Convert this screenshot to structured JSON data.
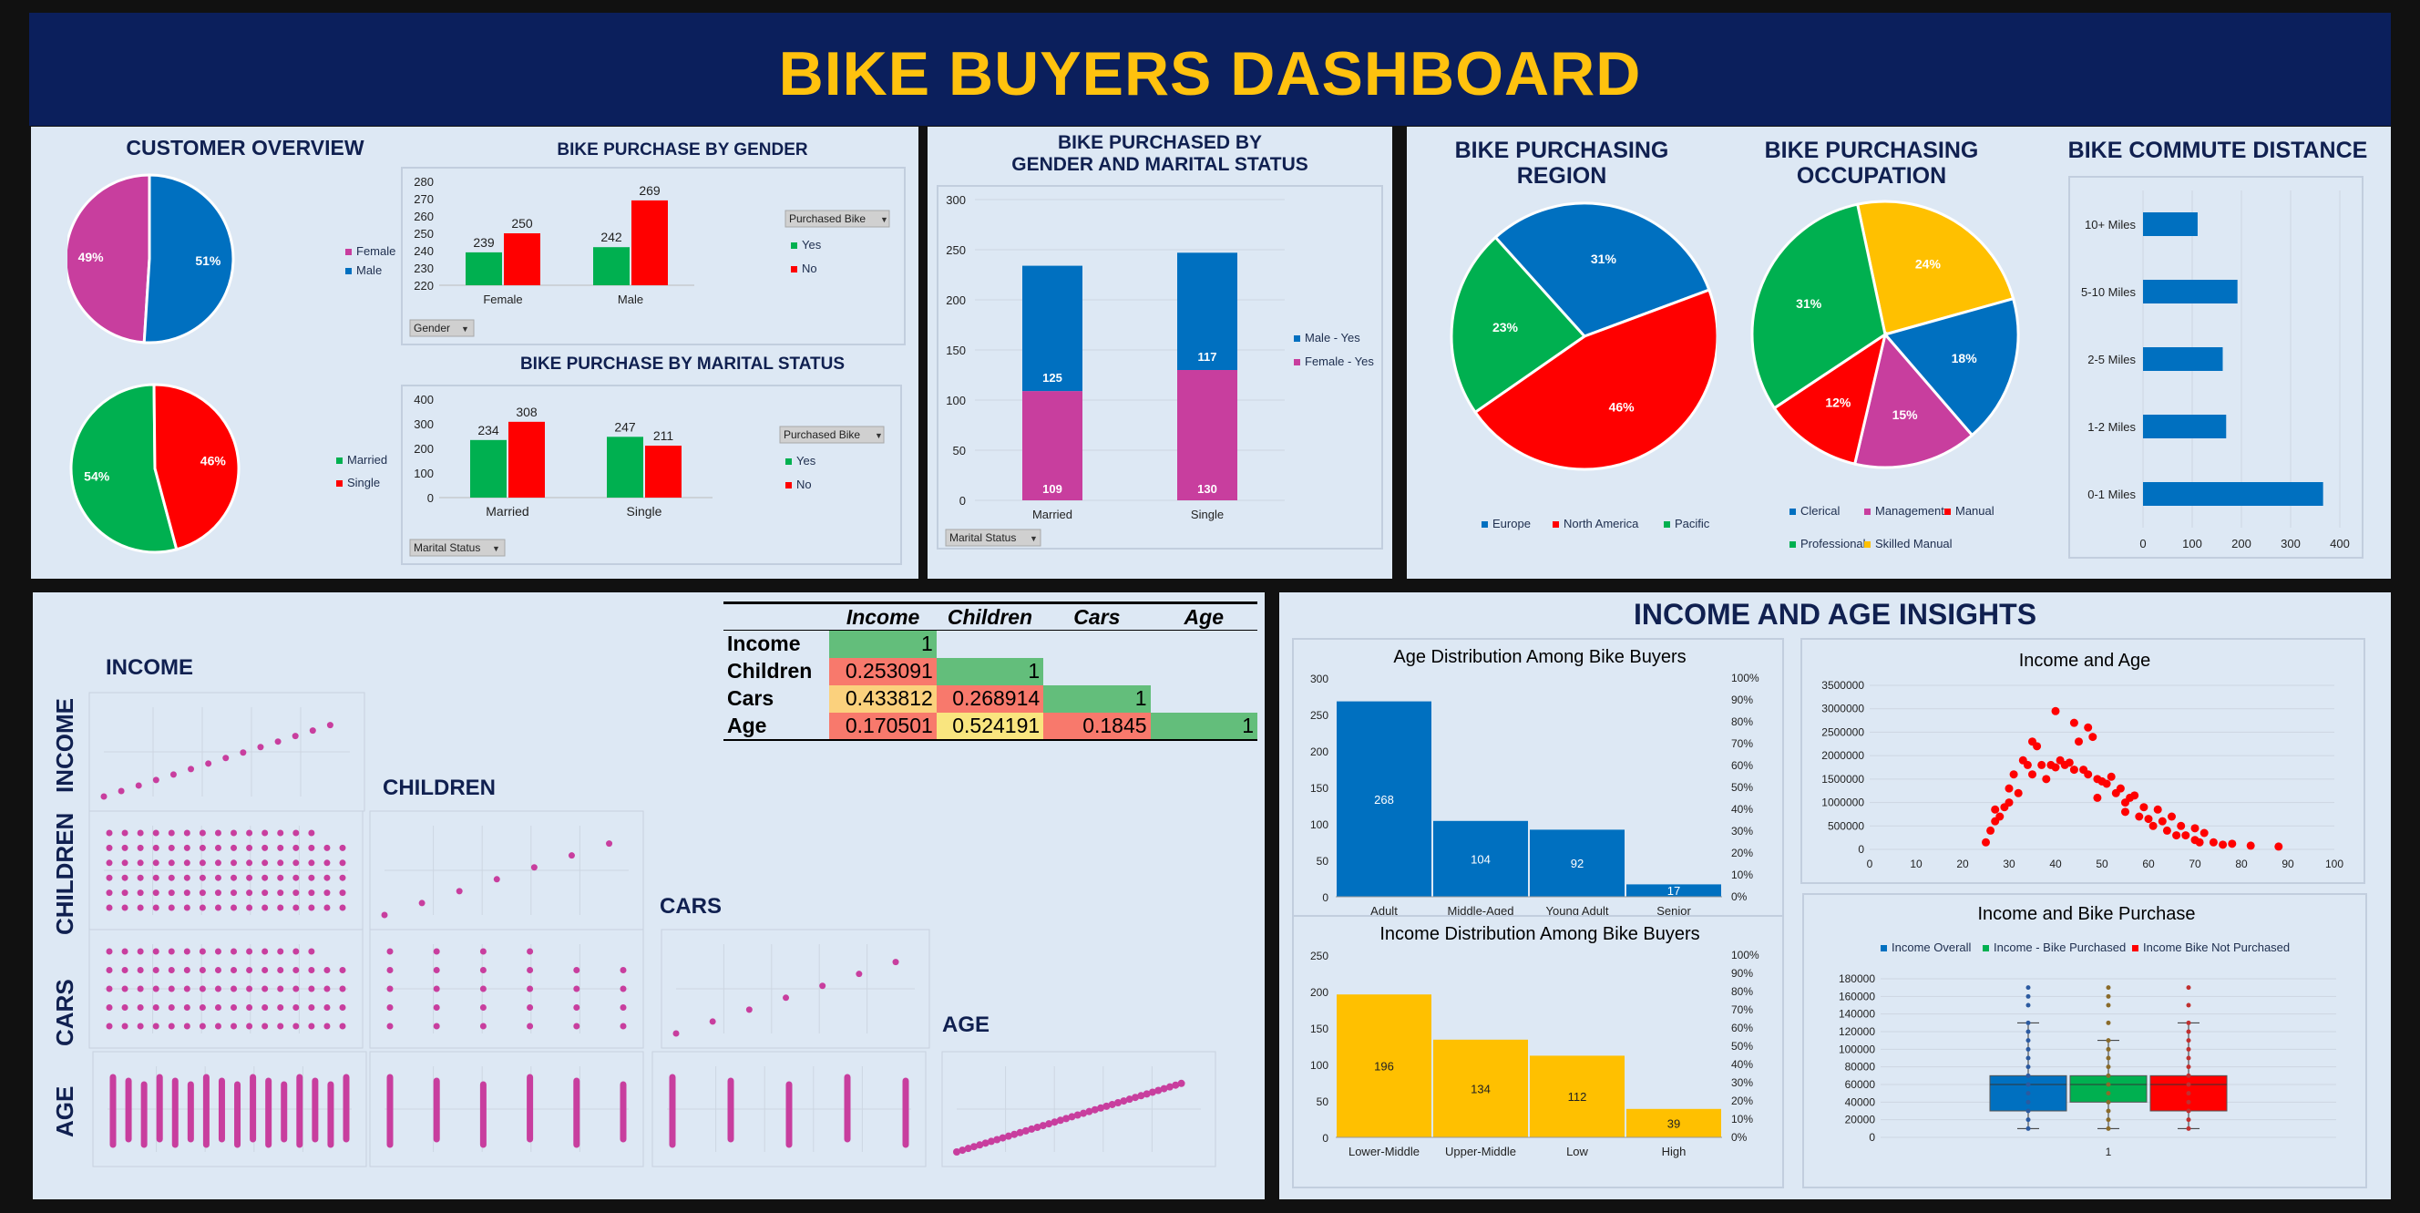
{
  "title": "BIKE BUYERS DASHBOARD",
  "colors": {
    "male": "#0070c0",
    "female": "#c83e9e",
    "yes": "#00b050",
    "no": "#ff0000",
    "yellow": "#ffc000",
    "navy": "#0b1f5c"
  },
  "customer_overview": {
    "title": "CUSTOMER OVERVIEW",
    "gender_pie": {
      "type": "pie",
      "labels": [
        "Female",
        "Male"
      ],
      "values": [
        49,
        51
      ],
      "pct_labels": [
        "49%",
        "51%"
      ]
    },
    "marital_pie": {
      "type": "pie",
      "labels": [
        "Married",
        "Single"
      ],
      "values": [
        54,
        46
      ],
      "pct_labels": [
        "54%",
        "46%"
      ]
    }
  },
  "gender_purchase": {
    "title": "BIKE PURCHASE BY GENDER",
    "filter_label": "Purchased Bike",
    "axis_button": "Gender",
    "chart_data": {
      "type": "bar",
      "categories": [
        "Female",
        "Male"
      ],
      "series": [
        {
          "name": "Yes",
          "values": [
            239,
            242
          ]
        },
        {
          "name": "No",
          "values": [
            250,
            269
          ]
        }
      ],
      "ylim": [
        220,
        280
      ],
      "yticks": [
        "220",
        "230",
        "240",
        "250",
        "260",
        "270",
        "280"
      ]
    }
  },
  "marital_purchase": {
    "title": "BIKE PURCHASE BY MARITAL STATUS",
    "filter_label": "Purchased Bike",
    "axis_button": "Marital Status",
    "chart_data": {
      "type": "bar",
      "categories": [
        "Married",
        "Single"
      ],
      "series": [
        {
          "name": "Yes",
          "values": [
            234,
            247
          ]
        },
        {
          "name": "No",
          "values": [
            308,
            211
          ]
        }
      ],
      "ylim": [
        0,
        400
      ],
      "yticks": [
        "0",
        "100",
        "200",
        "300",
        "400"
      ]
    }
  },
  "gender_marital": {
    "title_line1": "BIKE PURCHASED BY",
    "title_line2": "GENDER AND MARITAL STATUS",
    "axis_button": "Marital Status",
    "chart_data": {
      "type": "bar",
      "stacked": true,
      "categories": [
        "Married",
        "Single"
      ],
      "series": [
        {
          "name": "Female - Yes",
          "values": [
            109,
            130
          ]
        },
        {
          "name": "Male - Yes",
          "values": [
            125,
            117
          ]
        }
      ],
      "ylim": [
        0,
        300
      ],
      "yticks": [
        "0",
        "50",
        "100",
        "150",
        "200",
        "250",
        "300"
      ]
    }
  },
  "region": {
    "title_line1": "BIKE PURCHASING",
    "title_line2": "REGION",
    "chart_data": {
      "type": "pie",
      "labels": [
        "Europe",
        "North America",
        "Pacific"
      ],
      "values": [
        31,
        46,
        23
      ],
      "pct_labels": [
        "31%",
        "46%",
        "23%"
      ]
    }
  },
  "occupation": {
    "title_line1": "BIKE PURCHASING",
    "title_line2": "OCCUPATION",
    "chart_data": {
      "type": "pie",
      "labels": [
        "Clerical",
        "Management",
        "Manual",
        "Professional",
        "Skilled Manual"
      ],
      "values": [
        18,
        15,
        12,
        31,
        24
      ],
      "pct_labels": [
        "18%",
        "15%",
        "12%",
        "31%",
        "24%"
      ]
    }
  },
  "commute": {
    "title": "BIKE COMMUTE DISTANCE",
    "chart_data": {
      "type": "bar",
      "orientation": "horizontal",
      "categories": [
        "10+ Miles",
        "5-10 Miles",
        "2-5 Miles",
        "1-2 Miles",
        "0-1 Miles"
      ],
      "values": [
        111,
        192,
        162,
        169,
        366
      ],
      "xlim": [
        0,
        400
      ],
      "xticks": [
        "0",
        "100",
        "200",
        "300",
        "400"
      ]
    }
  },
  "correlation": {
    "labels": [
      "INCOME",
      "CHILDREN",
      "CARS",
      "AGE"
    ],
    "table": {
      "columns": [
        "Income",
        "Children",
        "Cars",
        "Age"
      ],
      "rows": [
        {
          "label": "Income",
          "cells": [
            "1",
            "",
            "",
            ""
          ]
        },
        {
          "label": "Children",
          "cells": [
            "0.253091",
            "1",
            "",
            ""
          ]
        },
        {
          "label": "Cars",
          "cells": [
            "0.433812",
            "0.268914",
            "1",
            ""
          ]
        },
        {
          "label": "Age",
          "cells": [
            "0.170501",
            "0.524191",
            "0.1845",
            "1"
          ]
        }
      ]
    }
  },
  "insights": {
    "title": "INCOME AND AGE INSIGHTS",
    "age_dist": {
      "title": "Age Distribution Among Bike Buyers",
      "chart_data": {
        "type": "bar",
        "categories": [
          "Adult",
          "Middle-Aged",
          "Young Adult",
          "Senior"
        ],
        "values": [
          268,
          104,
          92,
          17
        ],
        "ylim": [
          0,
          300
        ],
        "yticks": [
          "0",
          "50",
          "100",
          "150",
          "200",
          "250",
          "300"
        ],
        "y2ticks": [
          "0%",
          "10%",
          "20%",
          "30%",
          "40%",
          "50%",
          "60%",
          "70%",
          "80%",
          "90%",
          "100%"
        ]
      }
    },
    "income_dist": {
      "title": "Income Distribution Among Bike Buyers",
      "chart_data": {
        "type": "bar",
        "categories": [
          "Lower-Middle",
          "Upper-Middle",
          "Low",
          "High"
        ],
        "values": [
          196,
          134,
          112,
          39
        ],
        "ylim": [
          0,
          250
        ],
        "yticks": [
          "0",
          "50",
          "100",
          "150",
          "200",
          "250"
        ],
        "y2ticks": [
          "0%",
          "10%",
          "20%",
          "30%",
          "40%",
          "50%",
          "60%",
          "70%",
          "80%",
          "90%",
          "100%"
        ]
      }
    },
    "income_age": {
      "title": "Income and Age",
      "chart_data": {
        "type": "scatter",
        "xlim": [
          0,
          100
        ],
        "ylim": [
          0,
          3500000
        ],
        "xticks": [
          "0",
          "10",
          "20",
          "30",
          "40",
          "50",
          "60",
          "70",
          "80",
          "90",
          "100"
        ],
        "yticks": [
          "0",
          "500000",
          "1000000",
          "1500000",
          "2000000",
          "2500000",
          "3000000",
          "3500000"
        ],
        "points": [
          [
            25,
            150000
          ],
          [
            26,
            400000
          ],
          [
            27,
            850000
          ],
          [
            27,
            600000
          ],
          [
            28,
            700000
          ],
          [
            29,
            900000
          ],
          [
            30,
            1300000
          ],
          [
            30,
            1000000
          ],
          [
            31,
            1600000
          ],
          [
            32,
            1200000
          ],
          [
            33,
            1900000
          ],
          [
            34,
            1800000
          ],
          [
            35,
            2300000
          ],
          [
            35,
            1600000
          ],
          [
            36,
            2200000
          ],
          [
            37,
            1800000
          ],
          [
            38,
            1500000
          ],
          [
            39,
            1800000
          ],
          [
            40,
            2950000
          ],
          [
            40,
            1750000
          ],
          [
            41,
            1900000
          ],
          [
            42,
            1800000
          ],
          [
            43,
            1850000
          ],
          [
            44,
            2700000
          ],
          [
            44,
            1700000
          ],
          [
            45,
            2300000
          ],
          [
            46,
            1700000
          ],
          [
            47,
            2600000
          ],
          [
            47,
            1600000
          ],
          [
            48,
            2400000
          ],
          [
            49,
            1500000
          ],
          [
            49,
            1100000
          ],
          [
            50,
            1450000
          ],
          [
            51,
            1400000
          ],
          [
            52,
            1550000
          ],
          [
            53,
            1200000
          ],
          [
            54,
            1300000
          ],
          [
            55,
            1000000
          ],
          [
            55,
            800000
          ],
          [
            56,
            1100000
          ],
          [
            57,
            1150000
          ],
          [
            58,
            700000
          ],
          [
            59,
            900000
          ],
          [
            60,
            650000
          ],
          [
            61,
            500000
          ],
          [
            62,
            850000
          ],
          [
            63,
            600000
          ],
          [
            64,
            400000
          ],
          [
            65,
            700000
          ],
          [
            66,
            300000
          ],
          [
            67,
            500000
          ],
          [
            68,
            300000
          ],
          [
            70,
            200000
          ],
          [
            70,
            450000
          ],
          [
            71,
            150000
          ],
          [
            72,
            350000
          ],
          [
            74,
            150000
          ],
          [
            76,
            100000
          ],
          [
            78,
            120000
          ],
          [
            82,
            80000
          ],
          [
            88,
            60000
          ]
        ]
      }
    },
    "income_purchase": {
      "title": "Income and Bike Purchase",
      "legend": [
        "Income Overall",
        "Income - Bike Purchased",
        "Income Bike Not Purchased"
      ],
      "chart_data": {
        "type": "box",
        "category": "1",
        "ylim": [
          0,
          180000
        ],
        "yticks": [
          "0",
          "20000",
          "40000",
          "60000",
          "80000",
          "100000",
          "120000",
          "140000",
          "160000",
          "180000"
        ],
        "series": [
          {
            "name": "Income Overall",
            "min": 10000,
            "q1": 30000,
            "median": 60000,
            "q3": 70000,
            "max": 130000,
            "outliers": [
              150000,
              160000,
              170000
            ]
          },
          {
            "name": "Income - Bike Purchased",
            "min": 10000,
            "q1": 40000,
            "median": 60000,
            "q3": 70000,
            "max": 110000,
            "outliers": [
              130000,
              150000,
              160000,
              170000
            ]
          },
          {
            "name": "Income Bike Not Purchased",
            "min": 10000,
            "q1": 30000,
            "median": 60000,
            "q3": 70000,
            "max": 130000,
            "outliers": [
              150000,
              170000
            ]
          }
        ]
      }
    }
  }
}
